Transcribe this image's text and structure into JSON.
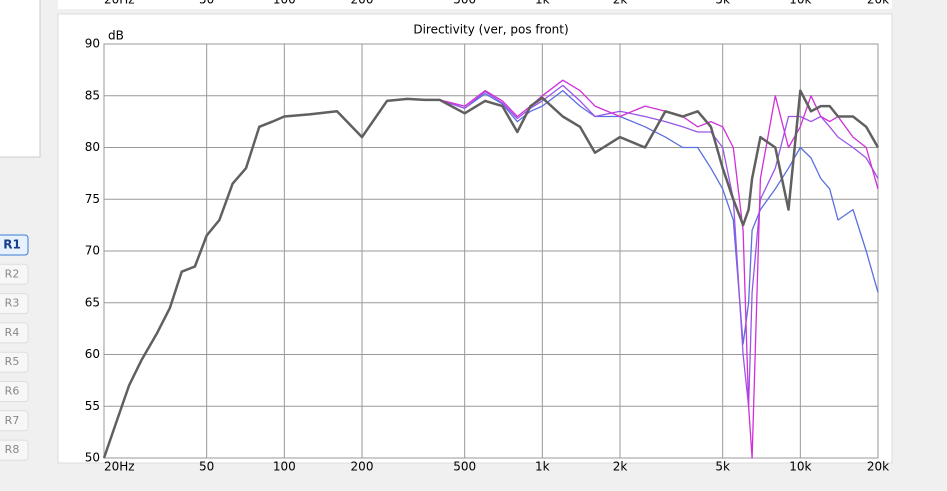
{
  "chart_data": {
    "type": "line",
    "title": "Directivity (ver, pos front)",
    "ylabel": "dB",
    "xscale": "log",
    "xlim": [
      20,
      20000
    ],
    "ylim": [
      50,
      90
    ],
    "grid": true,
    "xticks": [
      {
        "value": 20,
        "label": "20Hz"
      },
      50,
      100,
      200,
      500,
      {
        "value": 1000,
        "label": "1k"
      },
      {
        "value": 2000,
        "label": "2k"
      },
      {
        "value": 5000,
        "label": "5k"
      },
      {
        "value": 10000,
        "label": "10k"
      },
      {
        "value": 20000,
        "label": "20k"
      }
    ],
    "yticks": [
      50,
      55,
      60,
      65,
      70,
      75,
      80,
      85,
      90
    ],
    "x": [
      20,
      22,
      25,
      28,
      32,
      36,
      40,
      45,
      50,
      56,
      63,
      71,
      80,
      90,
      100,
      125,
      160,
      200,
      250,
      300,
      350,
      400,
      500,
      600,
      700,
      800,
      900,
      1000,
      1200,
      1400,
      1600,
      2000,
      2500,
      3000,
      3500,
      4000,
      4500,
      5000,
      5500,
      6000,
      6300,
      6500,
      7000,
      8000,
      9000,
      10000,
      11000,
      12000,
      13000,
      14000,
      16000,
      18000,
      20000
    ],
    "series": [
      {
        "color": "#5a6fe0",
        "values": [
          50,
          53,
          57,
          59.5,
          62,
          64.5,
          68,
          68.5,
          71.5,
          73,
          76.5,
          78,
          82,
          82.5,
          83,
          83.2,
          83.5,
          81,
          84.5,
          84.7,
          84.6,
          84.6,
          83.8,
          85.2,
          84.2,
          82.5,
          83.5,
          84,
          85.5,
          84,
          83,
          83,
          82,
          81,
          80,
          80,
          78,
          76,
          73,
          61,
          65,
          72,
          74,
          76,
          78,
          80,
          79,
          77,
          76,
          73,
          74,
          70,
          66
        ]
      },
      {
        "color": "#9a55e8",
        "values": [
          50,
          53,
          57,
          59.5,
          62,
          64.5,
          68,
          68.5,
          71.5,
          73,
          76.5,
          78,
          82,
          82.5,
          83,
          83.2,
          83.5,
          81,
          84.5,
          84.7,
          84.6,
          84.6,
          83.8,
          85.4,
          84.3,
          82.8,
          83.8,
          84.5,
          86,
          84.5,
          83,
          83.5,
          83,
          82.5,
          82,
          81.5,
          81.5,
          80,
          75,
          60,
          55,
          66,
          75,
          78,
          83,
          83,
          82.5,
          83,
          82,
          81,
          80,
          79,
          77
        ]
      },
      {
        "color": "#d030d8",
        "values": [
          50,
          53,
          57,
          59.5,
          62,
          64.5,
          68,
          68.5,
          71.5,
          73,
          76.5,
          78,
          82,
          82.5,
          83,
          83.2,
          83.5,
          81,
          84.5,
          84.7,
          84.6,
          84.6,
          84,
          85.5,
          84.5,
          83,
          84,
          85,
          86.5,
          85.5,
          84,
          83,
          84,
          83.5,
          83,
          82,
          82.5,
          82,
          80,
          72,
          55,
          50,
          77,
          85,
          80,
          82,
          85,
          83,
          82.5,
          83,
          81,
          80,
          76
        ]
      },
      {
        "color": "#606060",
        "values": [
          50,
          53,
          57,
          59.5,
          62,
          64.5,
          68,
          68.5,
          71.5,
          73,
          76.5,
          78,
          82,
          82.5,
          83,
          83.2,
          83.5,
          81,
          84.5,
          84.7,
          84.6,
          84.6,
          83.3,
          84.5,
          84,
          81.5,
          84,
          84.8,
          83,
          82,
          79.5,
          81,
          80,
          83.5,
          83,
          83.5,
          82,
          78,
          75,
          72.5,
          74,
          77,
          81,
          80,
          74,
          85.5,
          83.5,
          84,
          84,
          83,
          83,
          82,
          80
        ]
      }
    ]
  },
  "side_buttons": [
    "R1",
    "R2",
    "R3",
    "R4",
    "R5",
    "R6",
    "R7",
    "R8"
  ],
  "top_strip_labels": [
    "20Hz",
    "50",
    "100",
    "200",
    "500",
    "1k",
    "2k",
    "5k",
    "10k",
    "20k"
  ]
}
